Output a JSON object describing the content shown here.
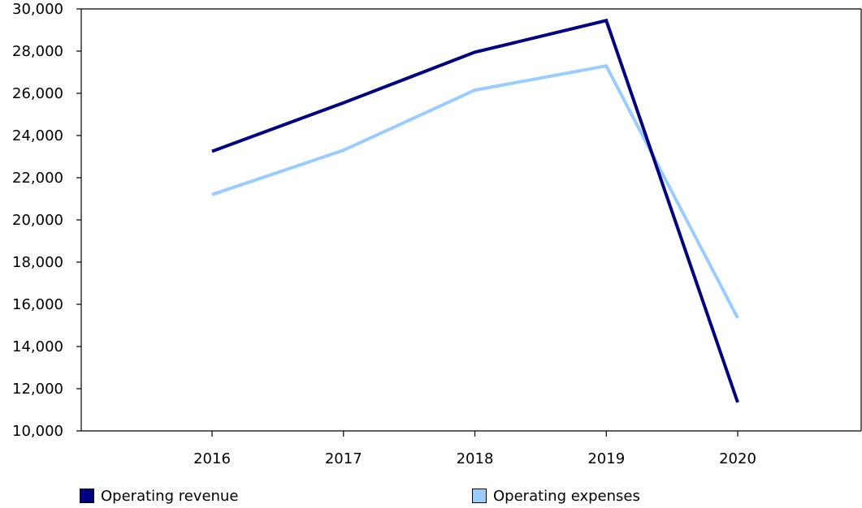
{
  "chart_data": {
    "type": "line",
    "title": "",
    "xlabel": "",
    "ylabel": "",
    "categories": [
      "2016",
      "2017",
      "2018",
      "2019",
      "2020"
    ],
    "ylim": [
      10000,
      30000
    ],
    "yticks": [
      10000,
      12000,
      14000,
      16000,
      18000,
      20000,
      22000,
      24000,
      26000,
      28000,
      30000
    ],
    "ytick_labels": [
      "10,000",
      "12,000",
      "14,000",
      "16,000",
      "18,000",
      "20,000",
      "22,000",
      "24,000",
      "26,000",
      "28,000",
      "30,000"
    ],
    "grid": false,
    "legend_position": "bottom",
    "series": [
      {
        "name": "Operating revenue",
        "color": "#000080",
        "values": [
          23250,
          25550,
          27950,
          29450,
          11350
        ]
      },
      {
        "name": "Operating expenses",
        "color": "#99ccff",
        "values": [
          21200,
          23300,
          26150,
          27300,
          15350
        ]
      }
    ]
  }
}
